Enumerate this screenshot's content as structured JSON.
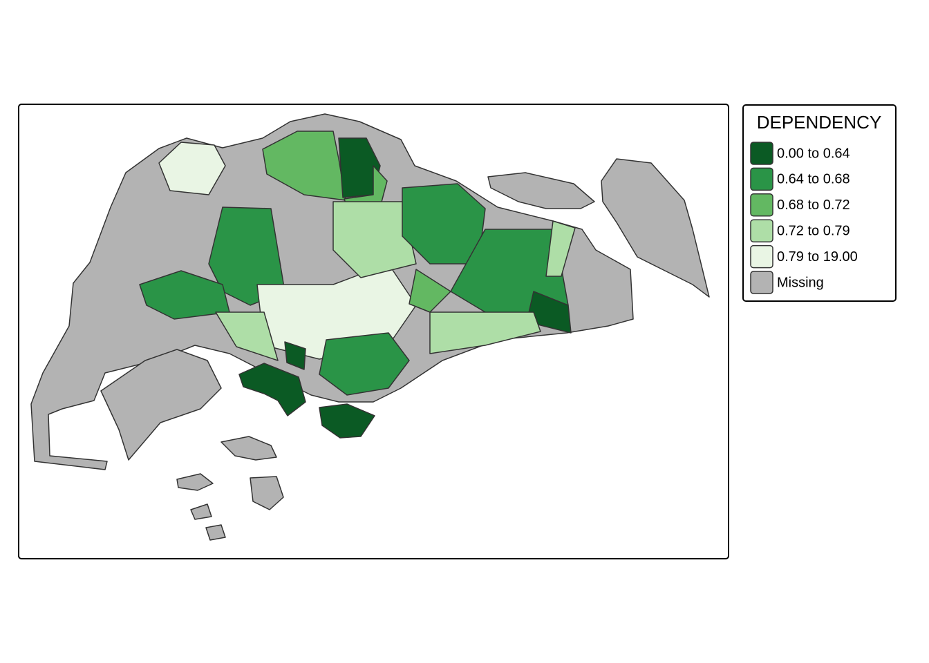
{
  "legend": {
    "title": "DEPENDENCY",
    "items": [
      {
        "label": "0.00 to 0.64",
        "color": "#0b5a24"
      },
      {
        "label": "0.64 to 0.68",
        "color": "#2a9447"
      },
      {
        "label": "0.68 to 0.72",
        "color": "#63b862"
      },
      {
        "label": "0.72 to 0.79",
        "color": "#aedea7"
      },
      {
        "label": "0.79 to 19.00",
        "color": "#e9f5e4"
      },
      {
        "label": "Missing",
        "color": "#b3b3b3"
      }
    ]
  }
}
